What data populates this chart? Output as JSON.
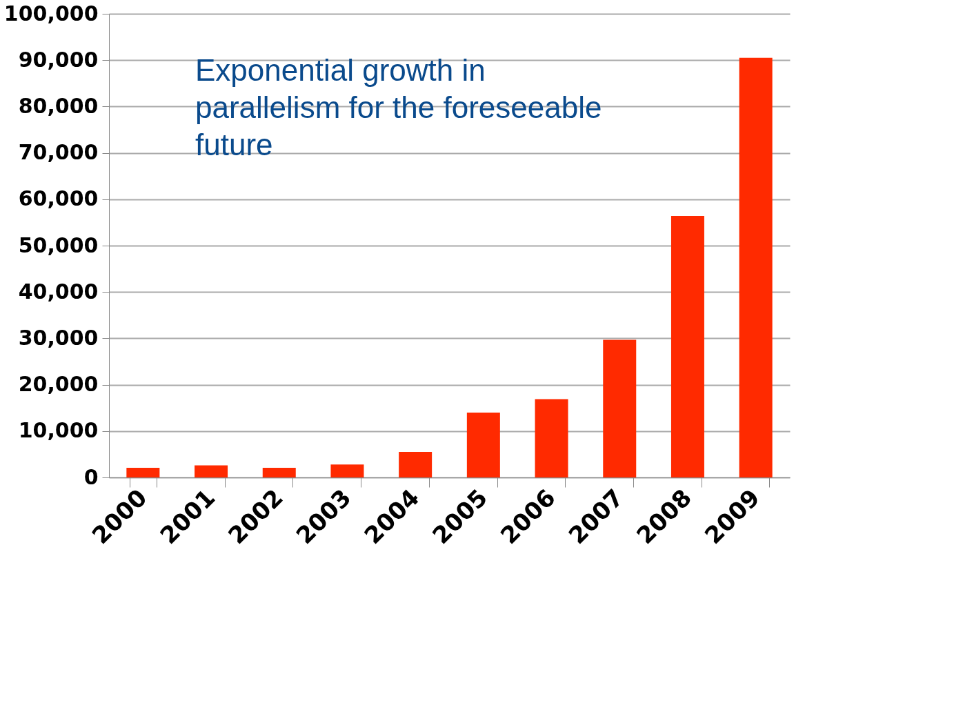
{
  "chart_data": {
    "type": "bar",
    "categories": [
      "2000",
      "2001",
      "2002",
      "2003",
      "2004",
      "2005",
      "2006",
      "2007",
      "2008",
      "2009"
    ],
    "values": [
      2100,
      2600,
      2100,
      2800,
      5500,
      14000,
      16900,
      29700,
      56400,
      90500
    ],
    "color": "#ff2a00",
    "ylim": [
      0,
      100000
    ],
    "yticks": [
      0,
      {
        "value": 10000,
        "label": "10,000"
      },
      {
        "value": 20000,
        "label": "20,000"
      },
      {
        "value": 30000,
        "label": "30,000"
      },
      {
        "value": 40000,
        "label": "40,000"
      },
      {
        "value": 50000,
        "label": "50,000"
      },
      {
        "value": 60000,
        "label": "60,000"
      },
      {
        "value": 70000,
        "label": "70,000"
      },
      {
        "value": 80000,
        "label": "80,000"
      },
      {
        "value": 90000,
        "label": "90,000"
      },
      {
        "value": 100000,
        "label": "100,000"
      }
    ],
    "grid": "y",
    "annotations": [
      "Exponential growth  in\nparallelism for the foreseeable\nfuture"
    ]
  }
}
